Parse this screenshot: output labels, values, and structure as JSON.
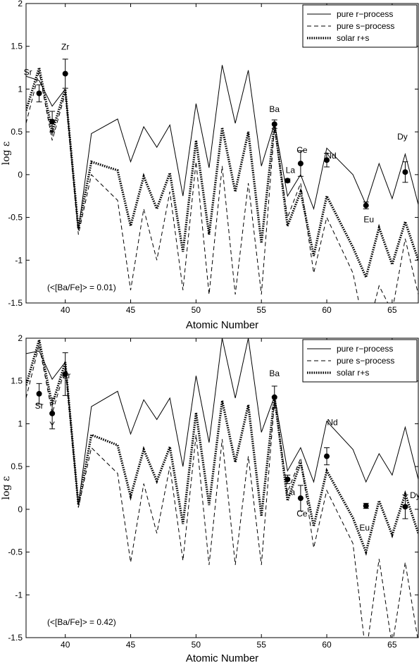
{
  "chart_data": [
    {
      "type": "line",
      "panel": "top",
      "xlabel": "Atomic Number",
      "ylabel": "log ε",
      "xlim": [
        37,
        67
      ],
      "ylim": [
        -1.5,
        2
      ],
      "xticks": [
        40,
        45,
        50,
        55,
        60,
        65
      ],
      "yticks": [
        -1.5,
        -1,
        -0.5,
        0,
        0.5,
        1,
        1.5,
        2
      ],
      "legend_position": "top-right",
      "annotation": "(<[Ba/Fe]> = 0.01)",
      "series": [
        {
          "name": "pure r−process",
          "style": "solid",
          "x": [
            37,
            38,
            39,
            40,
            41,
            42,
            44,
            45,
            46,
            47,
            48,
            49,
            50,
            51,
            52,
            53,
            54,
            55,
            56,
            57,
            58,
            59,
            60,
            62,
            63,
            64,
            65,
            66,
            67
          ],
          "y": [
            1.15,
            1.1,
            0.8,
            1.0,
            -0.65,
            0.48,
            0.65,
            0.15,
            0.56,
            0.32,
            0.58,
            -0.25,
            0.83,
            0.08,
            1.28,
            0.6,
            1.22,
            0.1,
            0.6,
            -0.25,
            0.0,
            -0.4,
            0.31,
            0.0,
            -0.35,
            0.13,
            -0.28,
            0.24,
            -0.35
          ]
        },
        {
          "name": "pure s−process",
          "style": "dashed",
          "x": [
            37,
            38,
            39,
            40,
            41,
            42,
            44,
            45,
            46,
            47,
            48,
            49,
            50,
            51,
            52,
            53,
            54,
            55,
            56,
            57,
            58,
            59,
            60,
            62,
            63,
            64,
            65,
            66,
            67
          ],
          "y": [
            0.6,
            1.2,
            0.4,
            0.95,
            -0.7,
            0.0,
            -0.3,
            -1.35,
            -0.4,
            -1.0,
            -0.2,
            -1.35,
            0.15,
            -1.4,
            0.1,
            -1.4,
            -0.1,
            -1.4,
            0.55,
            -0.5,
            -0.1,
            -1.15,
            -0.5,
            -1.15,
            -1.9,
            -1.3,
            -1.6,
            -0.75,
            -1.4
          ]
        },
        {
          "name": "solar r+s",
          "style": "dotted",
          "x": [
            37,
            38,
            39,
            40,
            41,
            42,
            44,
            45,
            46,
            47,
            48,
            49,
            50,
            51,
            52,
            53,
            54,
            55,
            56,
            57,
            58,
            59,
            60,
            62,
            63,
            64,
            65,
            66,
            67
          ],
          "y": [
            0.75,
            1.25,
            0.5,
            1.0,
            -0.63,
            0.15,
            0.05,
            -0.6,
            -0.02,
            -0.4,
            0.02,
            -0.9,
            0.4,
            -0.7,
            0.55,
            -0.2,
            0.5,
            -0.8,
            0.6,
            -0.6,
            -0.2,
            -0.95,
            -0.25,
            -0.85,
            -1.2,
            -0.62,
            -1.05,
            -0.55,
            -1.0
          ]
        }
      ],
      "observations": [
        {
          "label": "Sr",
          "x": 38,
          "y": 0.95,
          "err": 0.1
        },
        {
          "label": "Y",
          "x": 39,
          "y": 0.62,
          "err": 0.12
        },
        {
          "label": "Zr",
          "x": 40,
          "y": 1.18,
          "err": 0.17
        },
        {
          "label": "Ba",
          "x": 56,
          "y": 0.59,
          "err": 0.05
        },
        {
          "label": "La",
          "x": 57,
          "y": -0.07,
          "err": 0.02
        },
        {
          "label": "Ce",
          "x": 58,
          "y": 0.13,
          "err": 0.15
        },
        {
          "label": "Nd",
          "x": 60,
          "y": 0.17,
          "err": 0.08
        },
        {
          "label": "Eu",
          "x": 63,
          "y": -0.36,
          "err": 0.04
        },
        {
          "label": "Dy",
          "x": 66,
          "y": 0.03,
          "err": 0.12
        }
      ]
    },
    {
      "type": "line",
      "panel": "bottom",
      "xlabel": "Atomic Number",
      "ylabel": "log ε",
      "xlim": [
        37,
        67
      ],
      "ylim": [
        -1.5,
        2
      ],
      "xticks": [
        40,
        45,
        50,
        55,
        60,
        65
      ],
      "yticks": [
        -1.5,
        -1,
        -0.5,
        0,
        0.5,
        1,
        1.5,
        2
      ],
      "legend_position": "top-right",
      "annotation": "(<[Ba/Fe]> = 0.42)",
      "series": [
        {
          "name": "pure r−process",
          "style": "solid",
          "x": [
            37,
            38,
            39,
            40,
            41,
            42,
            44,
            45,
            46,
            47,
            48,
            49,
            50,
            51,
            52,
            53,
            54,
            55,
            56,
            57,
            58,
            59,
            60,
            62,
            63,
            64,
            65,
            66,
            67
          ],
          "y": [
            1.82,
            1.85,
            1.52,
            1.72,
            0.05,
            1.2,
            1.38,
            0.88,
            1.28,
            1.05,
            1.3,
            0.5,
            1.56,
            0.78,
            2.0,
            1.3,
            2.0,
            0.9,
            1.32,
            0.45,
            0.72,
            0.32,
            1.03,
            0.7,
            0.32,
            0.65,
            0.4,
            0.96,
            0.35
          ]
        },
        {
          "name": "pure s−process",
          "style": "dashed",
          "x": [
            37,
            38,
            39,
            40,
            41,
            42,
            44,
            45,
            46,
            47,
            48,
            49,
            50,
            51,
            52,
            53,
            54,
            55,
            56,
            57,
            58,
            59,
            60,
            62,
            63,
            64,
            65,
            66,
            67
          ],
          "y": [
            1.3,
            1.92,
            1.12,
            1.65,
            0.02,
            0.72,
            0.42,
            -0.62,
            0.3,
            -0.28,
            0.5,
            -0.6,
            0.87,
            -0.65,
            0.82,
            -0.65,
            0.62,
            -0.65,
            1.27,
            0.2,
            0.6,
            -0.45,
            0.22,
            -0.4,
            -1.7,
            -0.58,
            -1.6,
            -0.62,
            -1.55
          ]
        },
        {
          "name": "solar r+s",
          "style": "dotted",
          "x": [
            37,
            38,
            39,
            40,
            41,
            42,
            44,
            45,
            46,
            47,
            48,
            49,
            50,
            51,
            52,
            53,
            54,
            55,
            56,
            57,
            58,
            59,
            60,
            62,
            63,
            64,
            65,
            66,
            67
          ],
          "y": [
            1.45,
            1.98,
            1.22,
            1.72,
            0.05,
            0.87,
            0.75,
            0.15,
            0.7,
            0.33,
            0.73,
            -0.17,
            1.13,
            0.05,
            1.27,
            0.55,
            1.22,
            -0.08,
            1.32,
            0.1,
            0.55,
            -0.2,
            0.45,
            -0.1,
            -0.5,
            0.1,
            -0.3,
            0.18,
            -0.28
          ]
        }
      ],
      "observations": [
        {
          "label": "Sr",
          "x": 38,
          "y": 1.35,
          "err": 0.12
        },
        {
          "label": "Y",
          "x": 39,
          "y": 1.12,
          "err": 0.18
        },
        {
          "label": "Zr",
          "x": 40,
          "y": 1.58,
          "err": 0.25
        },
        {
          "label": "Ba",
          "x": 56,
          "y": 1.31,
          "err": 0.13
        },
        {
          "label": "La",
          "x": 57,
          "y": 0.35,
          "err": 0.05
        },
        {
          "label": "Ce",
          "x": 58,
          "y": 0.13,
          "err": 0.15
        },
        {
          "label": "Nd",
          "x": 60,
          "y": 0.62,
          "err": 0.1
        },
        {
          "label": "Eu",
          "x": 63,
          "y": 0.04,
          "err": 0.03
        },
        {
          "label": "Dy",
          "x": 66,
          "y": 0.03,
          "err": 0.14
        }
      ]
    }
  ]
}
